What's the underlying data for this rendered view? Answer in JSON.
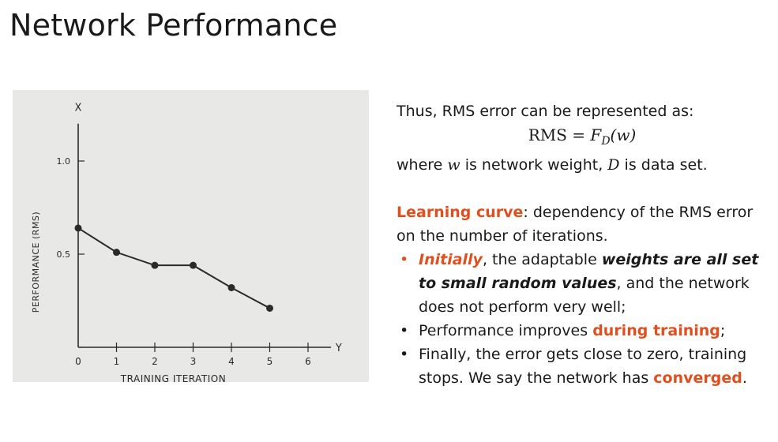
{
  "slide": {
    "title": "Network Performance"
  },
  "chart_data": {
    "type": "line",
    "x": [
      0,
      1,
      2,
      3,
      4,
      5
    ],
    "y": [
      0.64,
      0.51,
      0.44,
      0.44,
      0.32,
      0.21
    ],
    "xticks": [
      "0",
      "1",
      "2",
      "3",
      "4",
      "5",
      "6"
    ],
    "yticks": [
      "0.5",
      "1.0"
    ],
    "xlabel": "TRAINING ITERATION",
    "ylabel": "PERFORMANCE (RMS)",
    "x_axis_letter": "Y",
    "y_axis_letter": "X",
    "xlim": [
      0,
      6
    ],
    "ylim": [
      0,
      1.0
    ],
    "grid": false,
    "line_color": "#2a2a2a",
    "background_color": "#e8e8e6"
  },
  "text": {
    "rms_intro": "Thus, RMS error can be represented as:",
    "formula_lhs": "RMS = ",
    "formula_f": "F",
    "formula_sub": "D",
    "formula_arg": "(w)",
    "where_prefix": "where ",
    "where_w": "w",
    "where_mid": " is network weight, ",
    "where_d": "D",
    "where_suffix": " is data set.",
    "lc_term": "Learning curve",
    "lc_def": ": dependency of the RMS error on the number of iterations.",
    "b1_em": "Initially",
    "b1_a": ", the adaptable ",
    "b1_bold": "weights are all set to small random values",
    "b1_b": ", and the network does not perform very well;",
    "b2_a": "Performance improves ",
    "b2_red": "during training",
    "b2_b": ";",
    "b3_a": "Finally, the error gets close to zero, training stops. We say the network has ",
    "b3_red": "converged",
    "b3_b": "."
  },
  "colors": {
    "accent": "#e0501f",
    "text": "#1a1a1a"
  }
}
